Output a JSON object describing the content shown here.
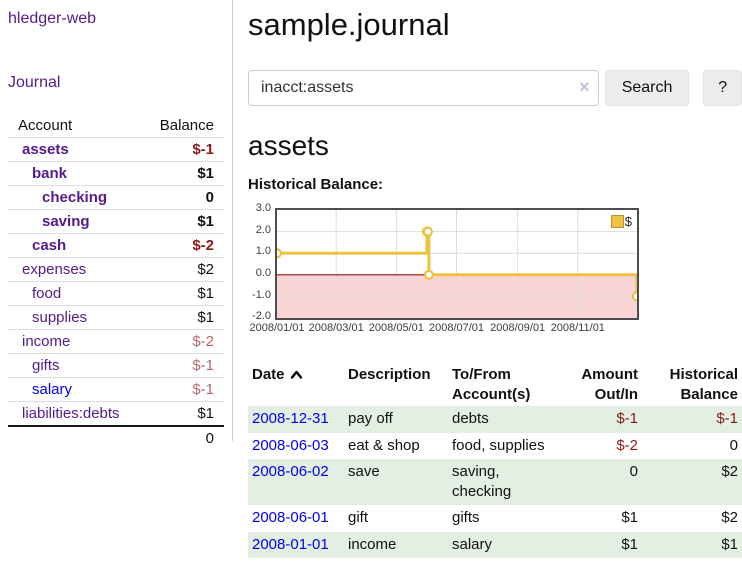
{
  "app": {
    "title": "hledger-web"
  },
  "sidebar": {
    "journal_link": "Journal",
    "accounts": {
      "header_account": "Account",
      "header_balance": "Balance",
      "rows": [
        {
          "account": "assets",
          "balance": "$-1"
        },
        {
          "account": "bank",
          "balance": "$1"
        },
        {
          "account": "checking",
          "balance": "0"
        },
        {
          "account": "saving",
          "balance": "$1"
        },
        {
          "account": "cash",
          "balance": "$-2"
        },
        {
          "account": "expenses",
          "balance": "$2"
        },
        {
          "account": "food",
          "balance": "$1"
        },
        {
          "account": "supplies",
          "balance": "$1"
        },
        {
          "account": "income",
          "balance": "$-2"
        },
        {
          "account": "gifts",
          "balance": "$-1"
        },
        {
          "account": "salary",
          "balance": "$-1"
        },
        {
          "account": "liabilities:debts",
          "balance": "$1"
        }
      ],
      "total": "0"
    }
  },
  "main": {
    "title": "sample.journal",
    "search": {
      "value": "inacct:assets",
      "clear_icon": "×",
      "search_button": "Search",
      "help_button": "?"
    },
    "account_heading": "assets",
    "chart_label": "Historical Balance:"
  },
  "chart_data": {
    "type": "line",
    "step": true,
    "title": "Historical Balance:",
    "series": [
      {
        "name": "$",
        "color": "#edc240",
        "points": [
          [
            "2008-01-01",
            1
          ],
          [
            "2008-06-01",
            2
          ],
          [
            "2008-06-02",
            2
          ],
          [
            "2008-06-03",
            0
          ],
          [
            "2008-12-31",
            -1
          ]
        ]
      }
    ],
    "x_range": [
      "2008-01-01",
      "2008-12-31"
    ],
    "x_ticks": [
      "2008/01/01",
      "2008/03/01",
      "2008/05/01",
      "2008/07/01",
      "2008/09/01",
      "2008/11/01"
    ],
    "y_ticks": [
      "3.0",
      "2.0",
      "1.0",
      "0.0",
      "-1.0",
      "-2.0"
    ],
    "ylim": [
      -2,
      3
    ],
    "legend_position": "top-right",
    "negative_region_color": "#f6c6c6",
    "zero_line_color": "#8f0e0e",
    "grid": true
  },
  "register": {
    "headers": {
      "date": "Date",
      "description": "Description",
      "accounts": "To/From Account(s)",
      "amount": "Amount Out/In",
      "balance": "Historical Balance"
    },
    "rows": [
      {
        "date": "2008-12-31",
        "description": "pay off",
        "accounts": "debts",
        "amount": "$-1",
        "balance": "$-1"
      },
      {
        "date": "2008-06-03",
        "description": "eat & shop",
        "accounts": "food, supplies",
        "amount": "$-2",
        "balance": "0"
      },
      {
        "date": "2008-06-02",
        "description": "save",
        "accounts": "saving, checking",
        "amount": "0",
        "balance": "$2"
      },
      {
        "date": "2008-06-01",
        "description": "gift",
        "accounts": "gifts",
        "amount": "$1",
        "balance": "$2"
      },
      {
        "date": "2008-01-01",
        "description": "income",
        "accounts": "salary",
        "amount": "$1",
        "balance": "$1"
      }
    ]
  }
}
